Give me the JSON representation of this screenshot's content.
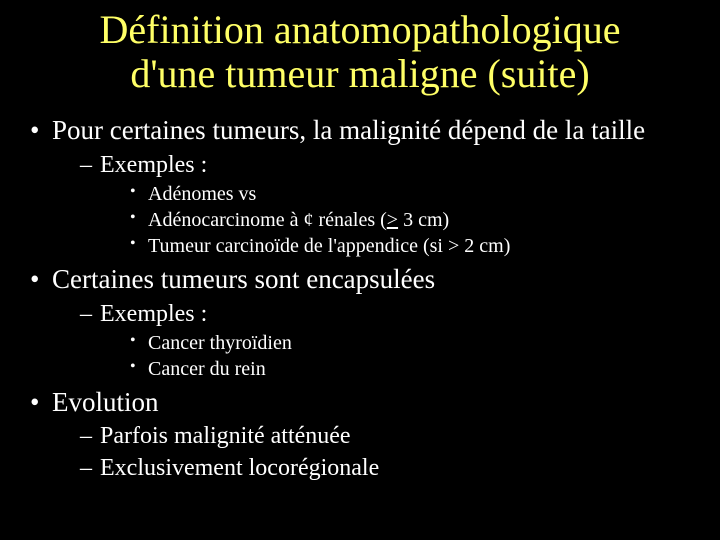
{
  "colors": {
    "background": "#000000",
    "title": "#ffff66",
    "text": "#ffffff"
  },
  "title_line1": "Définition anatomopathologique",
  "title_line2": "d'une tumeur maligne (suite)",
  "bullets": {
    "b1": "Pour certaines tumeurs, la malignité dépend de la taille",
    "b1_sub1": "Exemples :",
    "b1_sub1_a": "Adénomes vs",
    "b1_sub1_b": "Adénocarcinome à ¢ rénales (",
    "b1_sub1_b_u": ">",
    "b1_sub1_b_tail": " 3 cm)",
    "b1_sub1_c": "Tumeur carcinoïde de l'appendice (si > 2 cm)",
    "b2": "Certaines tumeurs sont encapsulées",
    "b2_sub1": "Exemples :",
    "b2_sub1_a": "Cancer thyroïdien",
    "b2_sub1_b": "Cancer du rein",
    "b3": "Evolution",
    "b3_sub1": "Parfois malignité atténuée",
    "b3_sub2": "Exclusivement locorégionale"
  }
}
